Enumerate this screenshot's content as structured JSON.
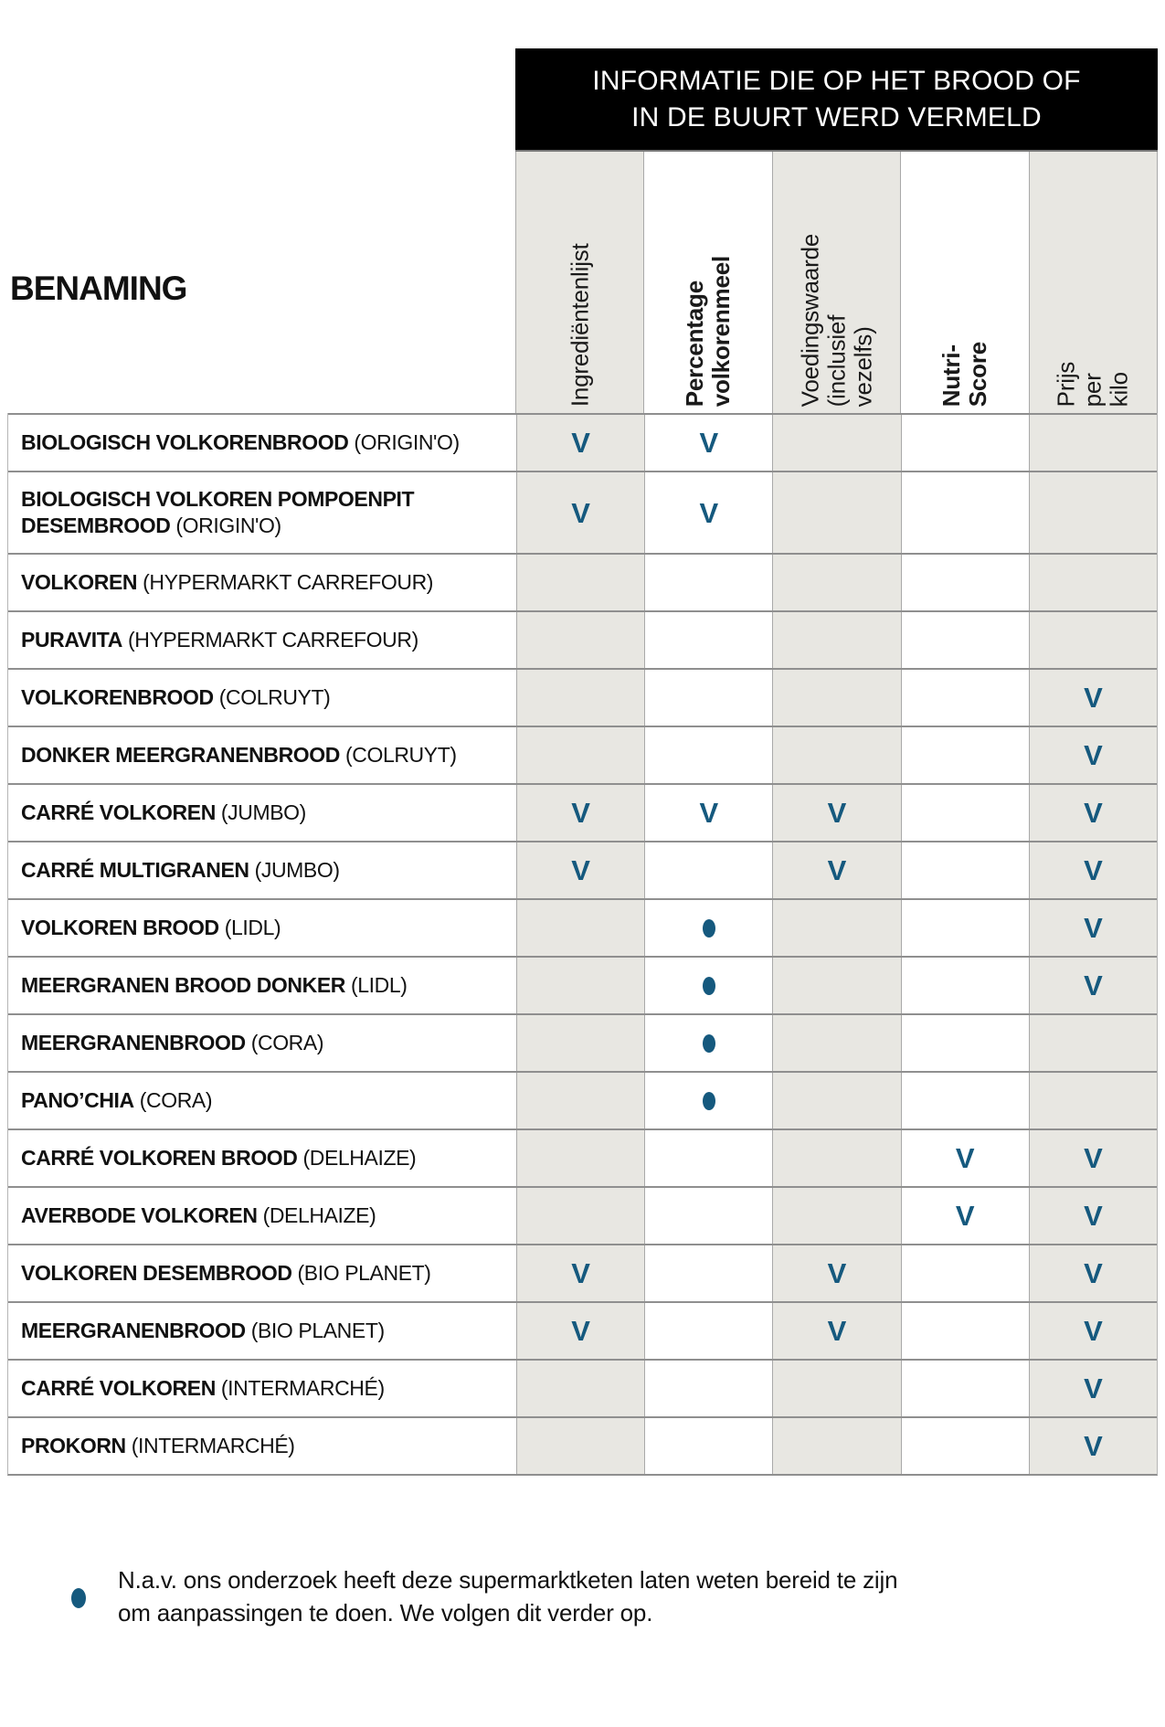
{
  "colors": {
    "accent_blue": "#15597E",
    "shaded_cell": "#E8E7E2",
    "banner_background": "#000000"
  },
  "header": {
    "title": "INFORMATIE DIE OP HET BROOD OF\nIN DE BUURT WERD VERMELD",
    "row_label_header": "BENAMING",
    "columns": [
      {
        "label": "Ingrediëntenlijst",
        "bold": false,
        "shaded": true
      },
      {
        "label": "Percentage\nvolkorenmeel",
        "bold": true,
        "shaded": false
      },
      {
        "label": "Voedingswaarde\n(inclusief vezelfs)",
        "bold": false,
        "shaded": true
      },
      {
        "label": "Nutri-Score",
        "bold": true,
        "shaded": false
      },
      {
        "label": "Prijs per kilo",
        "bold": false,
        "shaded": true
      }
    ]
  },
  "table": {
    "check_glyph": "V",
    "rows": [
      {
        "product": "BIOLOGISCH VOLKORENBROOD",
        "brand": "(ORIGIN'O)",
        "tall": false,
        "marks": [
          "check",
          "check",
          "",
          "",
          ""
        ]
      },
      {
        "product": "BIOLOGISCH VOLKOREN POMPOENPIT DESEMBROOD",
        "brand": "(ORIGIN'O)",
        "tall": true,
        "marks": [
          "check",
          "check",
          "",
          "",
          ""
        ]
      },
      {
        "product": "VOLKOREN",
        "brand": "(HYPERMARKT CARREFOUR)",
        "tall": false,
        "marks": [
          "",
          "",
          "",
          "",
          ""
        ]
      },
      {
        "product": "PURAVITA",
        "brand": "(HYPERMARKT CARREFOUR)",
        "tall": false,
        "marks": [
          "",
          "",
          "",
          "",
          ""
        ]
      },
      {
        "product": "VOLKORENBROOD",
        "brand": "(COLRUYT)",
        "tall": false,
        "marks": [
          "",
          "",
          "",
          "",
          "check"
        ]
      },
      {
        "product": "DONKER MEERGRANENBROOD",
        "brand": "(COLRUYT)",
        "tall": false,
        "marks": [
          "",
          "",
          "",
          "",
          "check"
        ]
      },
      {
        "product": "CARRÉ VOLKOREN",
        "brand": "(JUMBO)",
        "tall": false,
        "marks": [
          "check",
          "check",
          "check",
          "",
          "check"
        ]
      },
      {
        "product": "CARRÉ MULTIGRANEN",
        "brand": "(JUMBO)",
        "tall": false,
        "marks": [
          "check",
          "",
          "check",
          "",
          "check"
        ]
      },
      {
        "product": "VOLKOREN BROOD",
        "brand": "(LIDL)",
        "tall": false,
        "marks": [
          "",
          "dot",
          "",
          "",
          "check"
        ]
      },
      {
        "product": "MEERGRANEN BROOD DONKER",
        "brand": "(LIDL)",
        "tall": false,
        "marks": [
          "",
          "dot",
          "",
          "",
          "check"
        ]
      },
      {
        "product": "MEERGRANENBROOD",
        "brand": "(CORA)",
        "tall": false,
        "marks": [
          "",
          "dot",
          "",
          "",
          ""
        ]
      },
      {
        "product": "PANO’CHIA",
        "brand": "(CORA)",
        "tall": false,
        "marks": [
          "",
          "dot",
          "",
          "",
          ""
        ]
      },
      {
        "product": "CARRÉ VOLKOREN BROOD",
        "brand": "(DELHAIZE)",
        "tall": false,
        "marks": [
          "",
          "",
          "",
          "check",
          "check"
        ]
      },
      {
        "product": "AVERBODE VOLKOREN",
        "brand": "(DELHAIZE)",
        "tall": false,
        "marks": [
          "",
          "",
          "",
          "check",
          "check"
        ]
      },
      {
        "product": "VOLKOREN DESEMBROOD",
        "brand": "(BIO PLANET)",
        "tall": false,
        "marks": [
          "check",
          "",
          "check",
          "",
          "check"
        ]
      },
      {
        "product": "MEERGRANENBROOD",
        "brand": "(BIO PLANET)",
        "tall": false,
        "marks": [
          "check",
          "",
          "check",
          "",
          "check"
        ]
      },
      {
        "product": "CARRÉ VOLKOREN",
        "brand": "(INTERMARCHÉ)",
        "tall": false,
        "marks": [
          "",
          "",
          "",
          "",
          "check"
        ]
      },
      {
        "product": "PROKORN",
        "brand": "(INTERMARCHÉ)",
        "tall": false,
        "marks": [
          "",
          "",
          "",
          "",
          "check"
        ]
      }
    ]
  },
  "legend": {
    "dot_note": "N.a.v. ons onderzoek heeft deze supermarktketen laten weten bereid te zijn\nom aanpassingen te doen. We volgen dit verder op."
  }
}
